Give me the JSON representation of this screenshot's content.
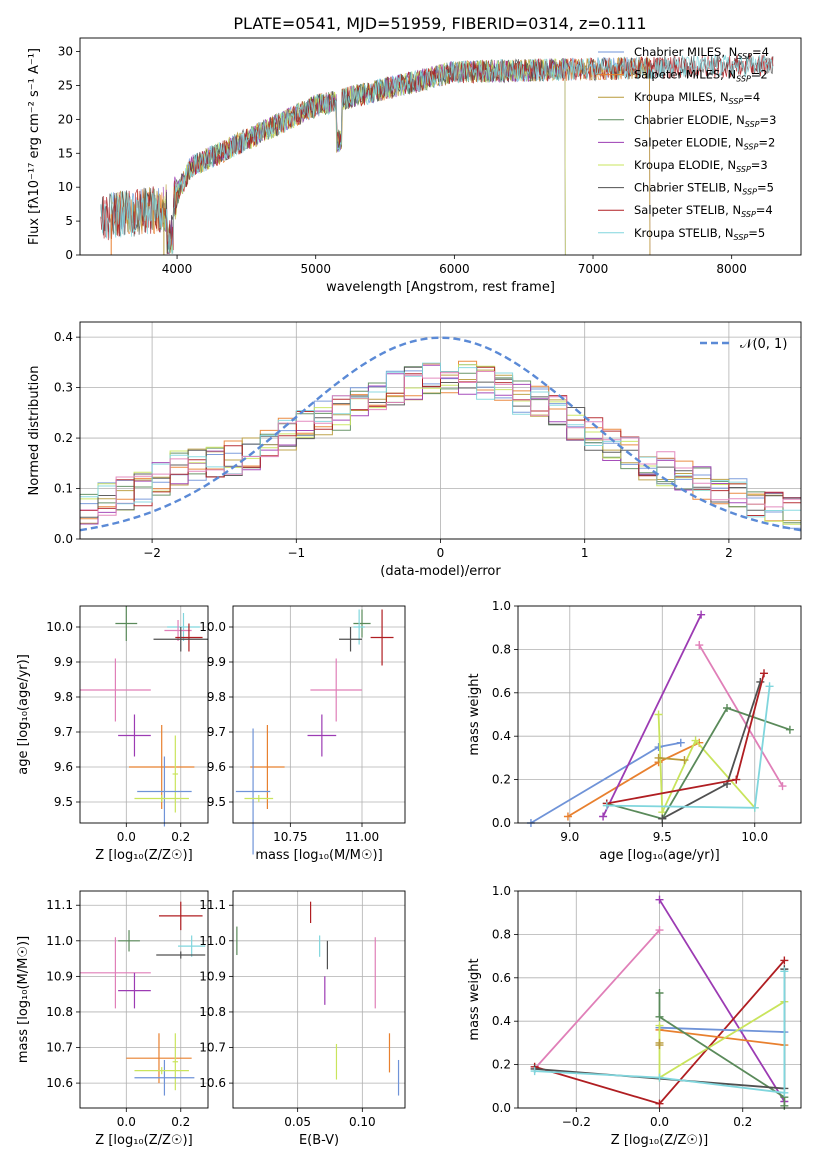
{
  "figure_title": "PLATE=0541, MJD=51959, FIBERID=0314, z=0.111",
  "colors": {
    "grid": "#b0b0b0",
    "gauss": "#5b8ad6",
    "series": [
      "#6f93d8",
      "#e8802f",
      "#5a8a5a",
      "#9c3bb3",
      "#c9e45c",
      "#505050",
      "#b01e22",
      "#80d6dd",
      "#e07fb8",
      "#b89a3a",
      "#7fb4a8"
    ]
  },
  "chart_data": [
    {
      "id": "spectrum",
      "type": "line",
      "xlabel": "wavelength [Angstrom, rest frame]",
      "ylabel": "Flux [fλ10⁻¹⁷ erg cm⁻² s⁻¹ A⁻¹]",
      "xlim": [
        3300,
        8500
      ],
      "ylim": [
        0,
        32
      ],
      "xticks": [
        4000,
        5000,
        6000,
        7000,
        8000
      ],
      "yticks": [
        0,
        5,
        10,
        15,
        20,
        25,
        30
      ],
      "grid": false,
      "legend_position": "top-right",
      "series": [
        {
          "name": "Chabrier MILES, N_SSP=4",
          "name_display": "Chabrier MILES, N",
          "sub": "SSP",
          "suffix": "=4",
          "range": [
            3525,
            7410
          ]
        },
        {
          "name": "Salpeter MILES, N_SSP=2",
          "name_display": "Salpeter MILES, N",
          "sub": "SSP",
          "suffix": "=2",
          "range": [
            3525,
            7410
          ]
        },
        {
          "name": "Kroupa MILES, N_SSP=4",
          "name_display": "Kroupa MILES, N",
          "sub": "SSP",
          "suffix": "=4",
          "range": [
            3525,
            7410
          ]
        },
        {
          "name": "Chabrier ELODIE, N_SSP=3",
          "name_display": "Chabrier ELODIE, N",
          "sub": "SSP",
          "suffix": "=3",
          "range": [
            3900,
            6800
          ]
        },
        {
          "name": "Salpeter ELODIE, N_SSP=2",
          "name_display": "Salpeter ELODIE, N",
          "sub": "SSP",
          "suffix": "=2",
          "range": [
            3900,
            6800
          ]
        },
        {
          "name": "Kroupa ELODIE, N_SSP=3",
          "name_display": "Kroupa ELODIE, N",
          "sub": "SSP",
          "suffix": "=3",
          "range": [
            3900,
            6800
          ]
        },
        {
          "name": "Chabrier STELIB, N_SSP=5",
          "name_display": "Chabrier STELIB, N",
          "sub": "SSP",
          "suffix": "=5",
          "range": [
            3450,
            8300
          ]
        },
        {
          "name": "Salpeter STELIB, N_SSP=4",
          "name_display": "Salpeter STELIB, N",
          "sub": "SSP",
          "suffix": "=4",
          "range": [
            3450,
            8300
          ]
        },
        {
          "name": "Kroupa STELIB, N_SSP=5",
          "name_display": "Kroupa STELIB, N",
          "sub": "SSP",
          "suffix": "=5",
          "range": [
            3450,
            8300
          ]
        }
      ]
    },
    {
      "id": "residuals",
      "type": "histogram",
      "xlabel": "(data-model)/error",
      "ylabel": "Normed distribution",
      "xlim": [
        -2.5,
        2.5
      ],
      "ylim": [
        0,
        0.43
      ],
      "xticks": [
        -2,
        -1,
        0,
        1,
        2
      ],
      "yticks": [
        0.0,
        0.1,
        0.2,
        0.3,
        0.4
      ],
      "grid": true,
      "bins": 40,
      "legend_position": "top-right",
      "reference_curve": {
        "name": "𝒩(0, 1)",
        "style": "dashed",
        "mean": 0,
        "sigma": 1
      },
      "hist_template": [
        0.06,
        0.08,
        0.09,
        0.1,
        0.12,
        0.14,
        0.15,
        0.15,
        0.16,
        0.17,
        0.19,
        0.21,
        0.22,
        0.24,
        0.25,
        0.27,
        0.28,
        0.3,
        0.31,
        0.32,
        0.32,
        0.32,
        0.31,
        0.3,
        0.28,
        0.27,
        0.25,
        0.23,
        0.21,
        0.19,
        0.17,
        0.15,
        0.14,
        0.12,
        0.11,
        0.1,
        0.09,
        0.07,
        0.06,
        0.05
      ]
    },
    {
      "id": "age-vs-Z",
      "type": "errorbar",
      "xlabel": "Z [log₁₀(Z/Z☉)]",
      "ylabel": "age  [log₁₀(age/yr)]",
      "xlim": [
        -0.17,
        0.3
      ],
      "ylim": [
        9.44,
        10.06
      ],
      "xticks": [
        0.0,
        0.2
      ],
      "yticks": [
        9.5,
        9.6,
        9.7,
        9.8,
        9.9,
        10.0
      ],
      "grid": true,
      "points": [
        {
          "x": 0.0,
          "y": 10.01,
          "xerr": 0.04,
          "yerr": 0.05,
          "c": 2
        },
        {
          "x": 0.21,
          "y": 10.0,
          "xerr": 0.06,
          "yerr": 0.04,
          "c": 7
        },
        {
          "x": 0.19,
          "y": 9.99,
          "xerr": 0.05,
          "yerr": 0.03,
          "c": 8
        },
        {
          "x": 0.23,
          "y": 9.97,
          "xerr": 0.05,
          "yerr": 0.04,
          "c": 6
        },
        {
          "x": 0.2,
          "y": 9.965,
          "xerr": 0.1,
          "yerr": 0.035,
          "c": 5
        },
        {
          "x": -0.04,
          "y": 9.82,
          "xerr": 0.13,
          "yerr": 0.09,
          "c": 8
        },
        {
          "x": 0.03,
          "y": 9.69,
          "xerr": 0.06,
          "yerr": 0.06,
          "c": 3
        },
        {
          "x": 0.13,
          "y": 9.6,
          "xerr": 0.12,
          "yerr": 0.12,
          "c": 1
        },
        {
          "x": 0.18,
          "y": 9.58,
          "xerr": 0.01,
          "yerr": 0.11,
          "c": 4
        },
        {
          "x": 0.14,
          "y": 9.53,
          "xerr": 0.1,
          "yerr": 0.1,
          "c": 0
        },
        {
          "x": 0.13,
          "y": 9.51,
          "xerr": 0.1,
          "yerr": 0.01,
          "c": 4
        }
      ]
    },
    {
      "id": "age-vs-mass",
      "type": "errorbar",
      "xlabel": "mass [log₁₀(M/M☉)]",
      "ylabel": "",
      "xlim": [
        10.55,
        11.15
      ],
      "ylim": [
        9.44,
        10.06
      ],
      "xticks": [
        10.75,
        11.0
      ],
      "xtick_labels": [
        "10.75",
        "11.00"
      ],
      "yticks": [
        9.5,
        9.6,
        9.7,
        9.8,
        9.9,
        10.0
      ],
      "grid": true,
      "points": [
        {
          "x": 11.0,
          "y": 10.01,
          "xerr": 0.03,
          "yerr": 0.04,
          "c": 2
        },
        {
          "x": 10.99,
          "y": 10.0,
          "xerr": 0.02,
          "yerr": 0.05,
          "c": 7
        },
        {
          "x": 11.07,
          "y": 9.97,
          "xerr": 0.04,
          "yerr": 0.08,
          "c": 6
        },
        {
          "x": 10.96,
          "y": 9.965,
          "xerr": 0.04,
          "yerr": 0.035,
          "c": 5
        },
        {
          "x": 10.91,
          "y": 9.82,
          "xerr": 0.09,
          "yerr": 0.09,
          "c": 8
        },
        {
          "x": 10.86,
          "y": 9.69,
          "xerr": 0.05,
          "yerr": 0.06,
          "c": 3
        },
        {
          "x": 10.67,
          "y": 9.6,
          "xerr": 0.06,
          "yerr": 0.12,
          "c": 1
        },
        {
          "x": 10.62,
          "y": 9.53,
          "xerr": 0.06,
          "yerr": 0.18,
          "c": 0
        },
        {
          "x": 10.64,
          "y": 9.51,
          "xerr": 0.05,
          "yerr": 0.01,
          "c": 4
        }
      ]
    },
    {
      "id": "weight-vs-age",
      "type": "line",
      "xlabel": "age  [log₁₀(age/yr)]",
      "ylabel": "mass weight",
      "xlim": [
        8.72,
        10.25
      ],
      "ylim": [
        0,
        1.0
      ],
      "xticks": [
        9.0,
        9.5,
        10.0
      ],
      "yticks": [
        0.0,
        0.2,
        0.4,
        0.6,
        0.8,
        1.0
      ],
      "grid": true,
      "series": [
        {
          "c": 0,
          "x": [
            8.79,
            9.48,
            9.6
          ],
          "y": [
            0.0,
            0.35,
            0.37
          ]
        },
        {
          "c": 1,
          "x": [
            8.99,
            9.48,
            9.7
          ],
          "y": [
            0.03,
            0.28,
            0.37
          ]
        },
        {
          "c": 3,
          "x": [
            9.18,
            9.71
          ],
          "y": [
            0.03,
            0.96
          ]
        },
        {
          "c": 8,
          "x": [
            9.7,
            10.15
          ],
          "y": [
            0.82,
            0.17
          ]
        },
        {
          "c": 4,
          "x": [
            9.48,
            9.5,
            9.68,
            10.0
          ],
          "y": [
            0.5,
            0.05,
            0.38,
            0.07
          ]
        },
        {
          "c": 2,
          "x": [
            9.2,
            9.5,
            9.85,
            10.19
          ],
          "y": [
            0.09,
            0.02,
            0.53,
            0.43
          ]
        },
        {
          "c": 5,
          "x": [
            9.5,
            9.85,
            10.03
          ],
          "y": [
            0.02,
            0.18,
            0.65
          ]
        },
        {
          "c": 6,
          "x": [
            9.2,
            9.9,
            10.05
          ],
          "y": [
            0.09,
            0.2,
            0.69
          ]
        },
        {
          "c": 7,
          "x": [
            9.2,
            10.0,
            10.08
          ],
          "y": [
            0.08,
            0.07,
            0.63
          ]
        },
        {
          "c": 9,
          "x": [
            9.48,
            9.62
          ],
          "y": [
            0.3,
            0.29
          ]
        }
      ]
    },
    {
      "id": "mass-vs-Z",
      "type": "errorbar",
      "xlabel": "Z [log₁₀(Z/Z☉)]",
      "ylabel": "mass [log₁₀(M/M☉)]",
      "xlim": [
        -0.17,
        0.3
      ],
      "ylim": [
        10.53,
        11.14
      ],
      "xticks": [
        0.0,
        0.2
      ],
      "yticks": [
        10.6,
        10.7,
        10.8,
        10.9,
        11.0,
        11.1
      ],
      "grid": true,
      "points": [
        {
          "x": 0.2,
          "y": 11.07,
          "xerr": 0.08,
          "yerr": 0.04,
          "c": 6
        },
        {
          "x": 0.01,
          "y": 11.0,
          "xerr": 0.04,
          "yerr": 0.03,
          "c": 2
        },
        {
          "x": 0.24,
          "y": 10.985,
          "xerr": 0.05,
          "yerr": 0.03,
          "c": 7
        },
        {
          "x": 0.2,
          "y": 10.96,
          "xerr": 0.09,
          "yerr": 0.01,
          "c": 5
        },
        {
          "x": -0.04,
          "y": 10.91,
          "xerr": 0.13,
          "yerr": 0.1,
          "c": 8
        },
        {
          "x": 0.03,
          "y": 10.86,
          "xerr": 0.06,
          "yerr": 0.05,
          "c": 3
        },
        {
          "x": 0.12,
          "y": 10.67,
          "xerr": 0.12,
          "yerr": 0.07,
          "c": 1
        },
        {
          "x": 0.18,
          "y": 10.66,
          "xerr": 0.01,
          "yerr": 0.08,
          "c": 4
        },
        {
          "x": 0.14,
          "y": 10.615,
          "xerr": 0.11,
          "yerr": 0.05,
          "c": 0
        },
        {
          "x": 0.13,
          "y": 10.635,
          "xerr": 0.1,
          "yerr": 0.01,
          "c": 4
        }
      ]
    },
    {
      "id": "mass-vs-ebv",
      "type": "errorbar",
      "xlabel": "E(B-V)",
      "ylabel": "",
      "xlim": [
        0.0,
        0.133
      ],
      "ylim": [
        10.53,
        11.14
      ],
      "xticks": [
        0.05,
        0.1
      ],
      "xtick_labels": [
        "0.05",
        "0.10"
      ],
      "yticks": [
        10.6,
        10.7,
        10.8,
        10.9,
        11.0,
        11.1
      ],
      "grid": true,
      "points": [
        {
          "x": 0.003,
          "y": 11.0,
          "xerr": 0.0,
          "yerr": 0.04,
          "c": 2
        },
        {
          "x": 0.06,
          "y": 11.08,
          "xerr": 0.0,
          "yerr": 0.03,
          "c": 6
        },
        {
          "x": 0.067,
          "y": 10.985,
          "xerr": 0.0,
          "yerr": 0.03,
          "c": 7
        },
        {
          "x": 0.073,
          "y": 10.96,
          "xerr": 0.0,
          "yerr": 0.04,
          "c": 5
        },
        {
          "x": 0.071,
          "y": 10.86,
          "xerr": 0.0,
          "yerr": 0.04,
          "c": 3
        },
        {
          "x": 0.11,
          "y": 10.91,
          "xerr": 0.0,
          "yerr": 0.1,
          "c": 8
        },
        {
          "x": 0.08,
          "y": 10.66,
          "xerr": 0.0,
          "yerr": 0.05,
          "c": 4
        },
        {
          "x": 0.121,
          "y": 10.685,
          "xerr": 0.0,
          "yerr": 0.055,
          "c": 1
        },
        {
          "x": 0.128,
          "y": 10.615,
          "xerr": 0.0,
          "yerr": 0.05,
          "c": 0
        }
      ]
    },
    {
      "id": "weight-vs-Z",
      "type": "line",
      "xlabel": "Z [log₁₀(Z/Z☉)]",
      "ylabel": "mass weight",
      "xlim": [
        -0.34,
        0.34
      ],
      "ylim": [
        0,
        1.0
      ],
      "xticks": [
        -0.2,
        0.0,
        0.2
      ],
      "yticks": [
        0.0,
        0.2,
        0.4,
        0.6,
        0.8,
        1.0
      ],
      "grid": true,
      "series": [
        {
          "c": 3,
          "x": [
            0.0,
            0.3
          ],
          "y": [
            0.96,
            0.03
          ]
        },
        {
          "c": 8,
          "x": [
            -0.3,
            0.0
          ],
          "y": [
            0.18,
            0.82
          ]
        },
        {
          "c": 6,
          "x": [
            -0.3,
            0.0,
            0.3
          ],
          "y": [
            0.19,
            0.02,
            0.68
          ]
        },
        {
          "c": 0,
          "x": [
            0.0,
            0.3
          ],
          "y": [
            0.37,
            0.35
          ]
        },
        {
          "c": 1,
          "x": [
            0.0,
            0.3
          ],
          "y": [
            0.36,
            0.29
          ]
        },
        {
          "c": 4,
          "x": [
            0.0,
            0.0,
            0.3
          ],
          "y": [
            0.38,
            0.14,
            0.49
          ]
        },
        {
          "c": 2,
          "x": [
            0.0,
            0.0,
            0.3,
            0.3
          ],
          "y": [
            0.53,
            0.42,
            0.05,
            0.01
          ]
        },
        {
          "c": 5,
          "x": [
            -0.3,
            0.3,
            0.3
          ],
          "y": [
            0.18,
            0.09,
            0.64
          ]
        },
        {
          "c": 7,
          "x": [
            -0.3,
            0.0,
            0.3,
            0.3
          ],
          "y": [
            0.17,
            0.14,
            0.07,
            0.63
          ]
        },
        {
          "c": 9,
          "x": [
            0.0,
            0.0
          ],
          "y": [
            0.3,
            0.29
          ]
        }
      ]
    }
  ]
}
